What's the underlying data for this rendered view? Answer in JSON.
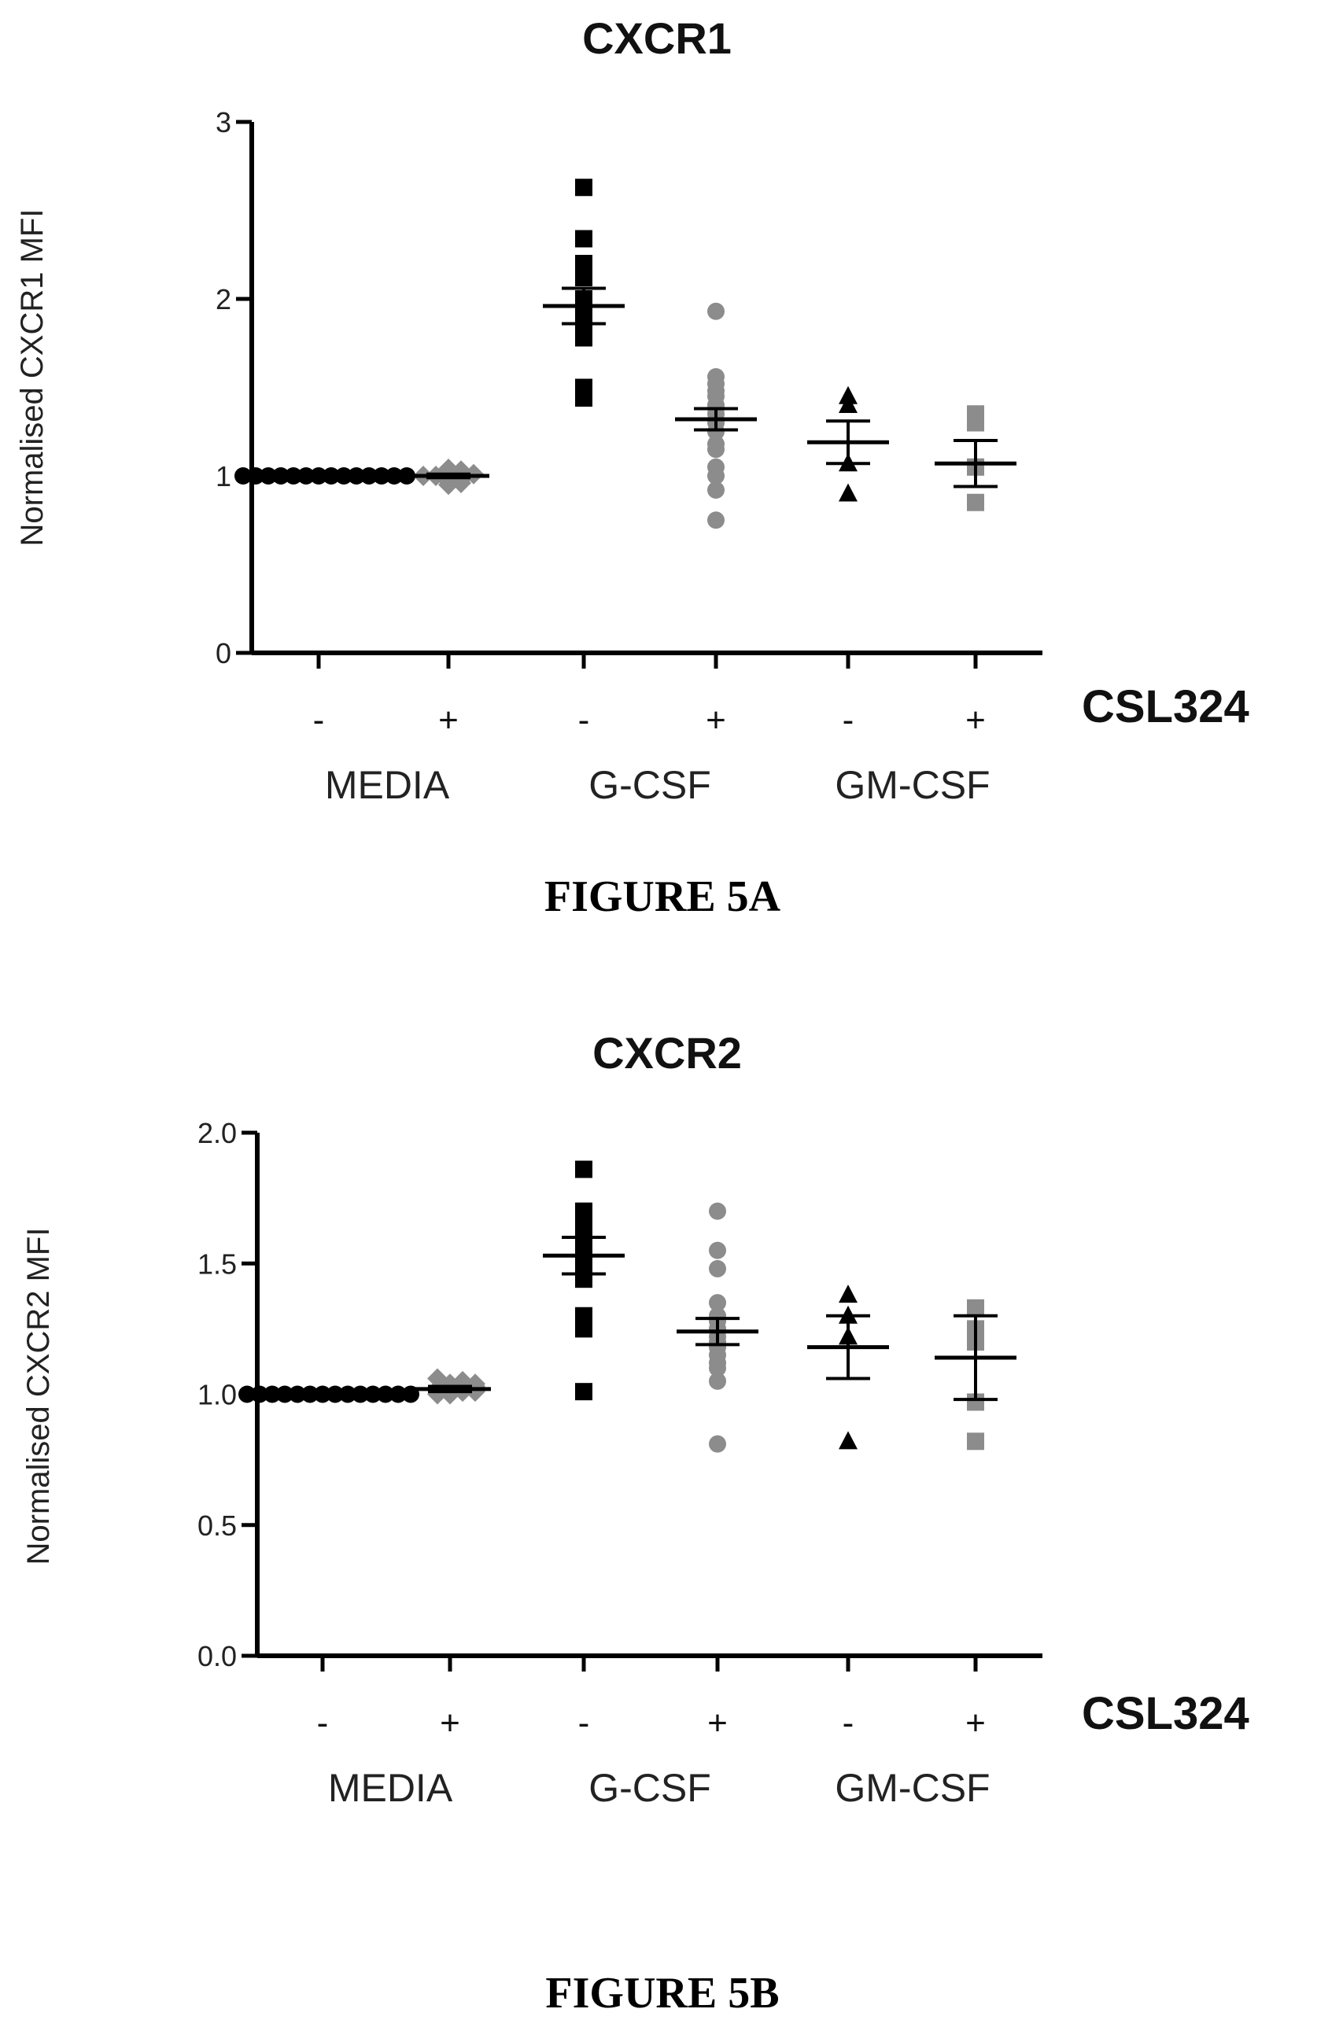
{
  "chart_data": [
    {
      "type": "scatter",
      "title": "CXCR1",
      "ylabel": "Normalised CXCR1 MFI",
      "ylim": [
        0,
        3
      ],
      "yticks": [
        "0",
        "1",
        "2",
        "3"
      ],
      "treatment_label": "CSL324",
      "signs": [
        "-",
        "+",
        "-",
        "+",
        "-",
        "+"
      ],
      "groups": [
        "MEDIA",
        "G-CSF",
        "GM-CSF"
      ],
      "caption": "FIGURE 5A",
      "series": [
        {
          "marker": "circle",
          "color": "#000000",
          "values": [
            1,
            1,
            1,
            1,
            1,
            1,
            1,
            1,
            1,
            1,
            1,
            1,
            1,
            1
          ],
          "mean": 1.0,
          "sem": 0.0
        },
        {
          "marker": "diamond",
          "color": "#8c8c8c",
          "values": [
            0.95,
            0.97,
            0.98,
            0.99,
            1.0,
            1.0,
            1.01,
            1.02,
            1.03,
            1.04,
            0.96,
            1.0
          ],
          "mean": 1.0,
          "sem": 0.01
        },
        {
          "marker": "square",
          "color": "#000000",
          "values": [
            2.63,
            2.34,
            2.2,
            2.12,
            2.0,
            1.97,
            1.9,
            1.85,
            1.78,
            1.5,
            1.44
          ],
          "mean": 1.96,
          "sem": 0.1
        },
        {
          "marker": "circle",
          "color": "#8c8c8c",
          "values": [
            1.93,
            1.56,
            1.52,
            1.48,
            1.45,
            1.4,
            1.38,
            1.35,
            1.3,
            1.25,
            1.18,
            1.15,
            1.05,
            1.0,
            0.92,
            0.75
          ],
          "mean": 1.32,
          "sem": 0.06
        },
        {
          "marker": "triangle",
          "color": "#000000",
          "values": [
            1.45,
            1.4,
            1.07,
            0.9
          ],
          "mean": 1.19,
          "sem": 0.12
        },
        {
          "marker": "square",
          "color": "#8c8c8c",
          "values": [
            1.35,
            1.3,
            1.05,
            0.85
          ],
          "mean": 1.07,
          "sem": 0.13
        }
      ]
    },
    {
      "type": "scatter",
      "title": "CXCR2",
      "ylabel": "Normalised CXCR2 MFI",
      "ylim": [
        0,
        2
      ],
      "yticks": [
        "0.0",
        "0.5",
        "1.0",
        "1.5",
        "2.0"
      ],
      "treatment_label": "CSL324",
      "signs": [
        "-",
        "+",
        "-",
        "+",
        "-",
        "+"
      ],
      "groups": [
        "MEDIA",
        "G-CSF",
        "GM-CSF"
      ],
      "caption": "FIGURE 5B",
      "series": [
        {
          "marker": "circle",
          "color": "#000000",
          "values": [
            1,
            1,
            1,
            1,
            1,
            1,
            1,
            1,
            1,
            1,
            1,
            1,
            1,
            1
          ],
          "mean": 1.0,
          "sem": 0.0
        },
        {
          "marker": "diamond",
          "color": "#8c8c8c",
          "values": [
            1.0,
            1.01,
            1.02,
            1.03,
            1.04,
            1.05,
            1.06,
            1.0,
            1.02,
            1.03,
            1.01,
            1.04
          ],
          "mean": 1.02,
          "sem": 0.01
        },
        {
          "marker": "square",
          "color": "#000000",
          "values": [
            1.86,
            1.7,
            1.65,
            1.6,
            1.58,
            1.55,
            1.5,
            1.44,
            1.3,
            1.25,
            1.01
          ],
          "mean": 1.53,
          "sem": 0.07
        },
        {
          "marker": "circle",
          "color": "#8c8c8c",
          "values": [
            1.7,
            1.55,
            1.48,
            1.35,
            1.3,
            1.28,
            1.25,
            1.22,
            1.2,
            1.18,
            1.15,
            1.12,
            1.1,
            1.05,
            0.81
          ],
          "mean": 1.24,
          "sem": 0.05
        },
        {
          "marker": "triangle",
          "color": "#000000",
          "values": [
            1.38,
            1.3,
            1.22,
            0.82
          ],
          "mean": 1.18,
          "sem": 0.12
        },
        {
          "marker": "square",
          "color": "#8c8c8c",
          "values": [
            1.33,
            1.25,
            1.2,
            0.97,
            0.82
          ],
          "mean": 1.14,
          "sem": 0.16
        }
      ]
    }
  ]
}
